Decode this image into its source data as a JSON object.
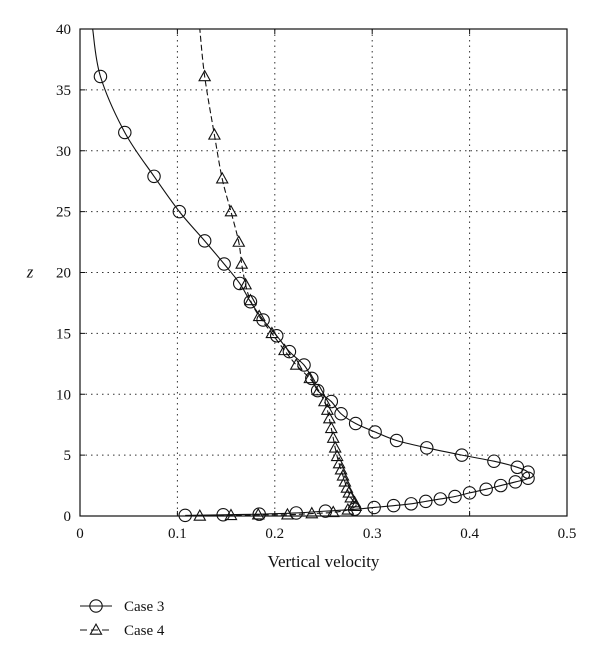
{
  "chart_data": {
    "type": "line",
    "title": "",
    "xlabel": "Vertical velocity",
    "ylabel": "z",
    "xlim": [
      0,
      0.5
    ],
    "ylim": [
      0,
      40
    ],
    "x_ticks": [
      "0",
      "0.1",
      "0.2",
      "0.3",
      "0.4",
      "0.5"
    ],
    "y_ticks": [
      "0",
      "5",
      "10",
      "15",
      "20",
      "25",
      "30",
      "35",
      "40"
    ],
    "grid": true,
    "legend_position": "below-left",
    "series": [
      {
        "name": "Case 3",
        "marker": "circle",
        "line_style": "solid",
        "points": [
          [
            0.108,
            0.05
          ],
          [
            0.147,
            0.1
          ],
          [
            0.184,
            0.15
          ],
          [
            0.222,
            0.25
          ],
          [
            0.252,
            0.4
          ],
          [
            0.282,
            0.55
          ],
          [
            0.302,
            0.7
          ],
          [
            0.322,
            0.85
          ],
          [
            0.34,
            1.0
          ],
          [
            0.355,
            1.2
          ],
          [
            0.37,
            1.4
          ],
          [
            0.385,
            1.6
          ],
          [
            0.4,
            1.9
          ],
          [
            0.417,
            2.2
          ],
          [
            0.432,
            2.5
          ],
          [
            0.447,
            2.8
          ],
          [
            0.46,
            3.1
          ],
          [
            0.46,
            3.6
          ],
          [
            0.449,
            4.0
          ],
          [
            0.425,
            4.5
          ],
          [
            0.392,
            5.0
          ],
          [
            0.356,
            5.6
          ],
          [
            0.325,
            6.2
          ],
          [
            0.303,
            6.9
          ],
          [
            0.283,
            7.6
          ],
          [
            0.268,
            8.4
          ],
          [
            0.258,
            9.4
          ],
          [
            0.244,
            10.3
          ],
          [
            0.238,
            11.3
          ],
          [
            0.23,
            12.4
          ],
          [
            0.215,
            13.5
          ],
          [
            0.202,
            14.8
          ],
          [
            0.188,
            16.1
          ],
          [
            0.175,
            17.6
          ],
          [
            0.164,
            19.1
          ],
          [
            0.148,
            20.7
          ],
          [
            0.128,
            22.6
          ],
          [
            0.102,
            25.0
          ],
          [
            0.076,
            27.9
          ],
          [
            0.046,
            31.5
          ],
          [
            0.021,
            36.1
          ]
        ],
        "line_top": [
          0.013,
          40.0
        ]
      },
      {
        "name": "Case 4",
        "marker": "triangle",
        "line_style": "dashed",
        "points": [
          [
            0.123,
            0.0
          ],
          [
            0.155,
            0.05
          ],
          [
            0.183,
            0.1
          ],
          [
            0.213,
            0.1
          ],
          [
            0.238,
            0.2
          ],
          [
            0.26,
            0.3
          ],
          [
            0.275,
            0.5
          ],
          [
            0.283,
            0.8
          ],
          [
            0.282,
            1.1
          ],
          [
            0.278,
            1.5
          ],
          [
            0.276,
            1.9
          ],
          [
            0.274,
            2.3
          ],
          [
            0.272,
            2.8
          ],
          [
            0.27,
            3.3
          ],
          [
            0.268,
            3.8
          ],
          [
            0.266,
            4.3
          ],
          [
            0.264,
            4.9
          ],
          [
            0.262,
            5.6
          ],
          [
            0.26,
            6.4
          ],
          [
            0.258,
            7.2
          ],
          [
            0.256,
            8.0
          ],
          [
            0.254,
            8.7
          ],
          [
            0.251,
            9.4
          ],
          [
            0.245,
            10.3
          ],
          [
            0.236,
            11.3
          ],
          [
            0.222,
            12.4
          ],
          [
            0.21,
            13.6
          ],
          [
            0.197,
            15.0
          ],
          [
            0.184,
            16.4
          ],
          [
            0.175,
            17.7
          ],
          [
            0.17,
            19.0
          ],
          [
            0.166,
            20.7
          ],
          [
            0.163,
            22.5
          ],
          [
            0.155,
            25.0
          ],
          [
            0.146,
            27.7
          ],
          [
            0.138,
            31.3
          ],
          [
            0.128,
            36.1
          ]
        ],
        "line_top": [
          0.123,
          40.0
        ]
      }
    ]
  }
}
